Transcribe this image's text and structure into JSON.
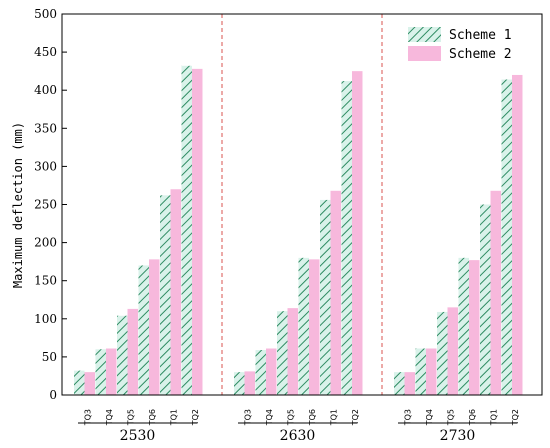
{
  "chart_data": {
    "type": "bar",
    "ylabel": "Maximum deflection (mm)",
    "ylim": [
      0,
      500
    ],
    "yticks": [
      "0",
      "50",
      "100",
      "150",
      "200",
      "250",
      "300",
      "350",
      "400",
      "450",
      "500"
    ],
    "grid": false,
    "legend_position": "top-right",
    "categories": [
      "TQ3",
      "TQ4",
      "TQ5",
      "TQ6",
      "TQ1",
      "TQ2"
    ],
    "groups": [
      {
        "name": "2530",
        "series": [
          {
            "name": "Scheme 1",
            "values": [
              32,
              60,
              104,
              170,
              262,
              432
            ]
          },
          {
            "name": "Scheme 2",
            "values": [
              30,
              61,
              113,
              178,
              270,
              428
            ]
          }
        ]
      },
      {
        "name": "2630",
        "series": [
          {
            "name": "Scheme 1",
            "values": [
              30,
              59,
              110,
              180,
              256,
              412
            ]
          },
          {
            "name": "Scheme 2",
            "values": [
              31,
              61,
              114,
              178,
              268,
              425
            ]
          }
        ]
      },
      {
        "name": "2730",
        "series": [
          {
            "name": "Scheme 1",
            "values": [
              30,
              61,
              109,
              180,
              250,
              414
            ]
          },
          {
            "name": "Scheme 2",
            "values": [
              30,
              61,
              115,
              177,
              268,
              420
            ]
          }
        ]
      }
    ],
    "colors": {
      "scheme1_fill": "#d9f2ea",
      "scheme1_hatch": "#2e8b62",
      "scheme2_fill": "#f7b8dc",
      "separator": "#d9534f"
    }
  }
}
